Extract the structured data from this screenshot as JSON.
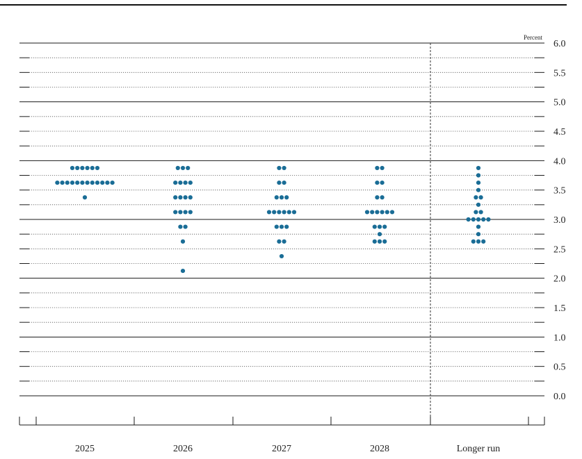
{
  "chart_data": {
    "type": "scatter",
    "unit_label": "Percent",
    "ylim": [
      0,
      6.0
    ],
    "yticks": [
      "6.0",
      "5.5",
      "5.0",
      "4.5",
      "4.0",
      "3.5",
      "3.0",
      "2.5",
      "2.0",
      "1.5",
      "1.0",
      "0.5",
      "0.0"
    ],
    "categories": [
      "2025",
      "2026",
      "2027",
      "2028",
      "Longer run"
    ],
    "grid": true,
    "dot_color": "#1a6d96",
    "dots": [
      {
        "category": "2025",
        "levels": [
          {
            "y": 3.875,
            "count": 6
          },
          {
            "y": 3.625,
            "count": 12
          },
          {
            "y": 3.375,
            "count": 1
          }
        ]
      },
      {
        "category": "2026",
        "levels": [
          {
            "y": 3.875,
            "count": 3
          },
          {
            "y": 3.625,
            "count": 4
          },
          {
            "y": 3.375,
            "count": 4
          },
          {
            "y": 3.125,
            "count": 4
          },
          {
            "y": 2.875,
            "count": 2
          },
          {
            "y": 2.625,
            "count": 1
          },
          {
            "y": 2.125,
            "count": 1
          }
        ]
      },
      {
        "category": "2027",
        "levels": [
          {
            "y": 3.875,
            "count": 2
          },
          {
            "y": 3.625,
            "count": 2
          },
          {
            "y": 3.375,
            "count": 3
          },
          {
            "y": 3.125,
            "count": 6
          },
          {
            "y": 2.875,
            "count": 3
          },
          {
            "y": 2.625,
            "count": 2
          },
          {
            "y": 2.375,
            "count": 1
          }
        ]
      },
      {
        "category": "2028",
        "levels": [
          {
            "y": 3.875,
            "count": 2
          },
          {
            "y": 3.625,
            "count": 2
          },
          {
            "y": 3.375,
            "count": 2
          },
          {
            "y": 3.125,
            "count": 6
          },
          {
            "y": 2.875,
            "count": 3
          },
          {
            "y": 2.75,
            "count": 1
          },
          {
            "y": 2.625,
            "count": 3
          }
        ]
      },
      {
        "category": "Longer run",
        "levels": [
          {
            "y": 3.875,
            "count": 1
          },
          {
            "y": 3.75,
            "count": 1
          },
          {
            "y": 3.625,
            "count": 1
          },
          {
            "y": 3.5,
            "count": 1
          },
          {
            "y": 3.375,
            "count": 2
          },
          {
            "y": 3.25,
            "count": 1
          },
          {
            "y": 3.125,
            "count": 2
          },
          {
            "y": 3.0,
            "count": 5
          },
          {
            "y": 2.875,
            "count": 1
          },
          {
            "y": 2.75,
            "count": 1
          },
          {
            "y": 2.625,
            "count": 3
          }
        ]
      }
    ]
  }
}
